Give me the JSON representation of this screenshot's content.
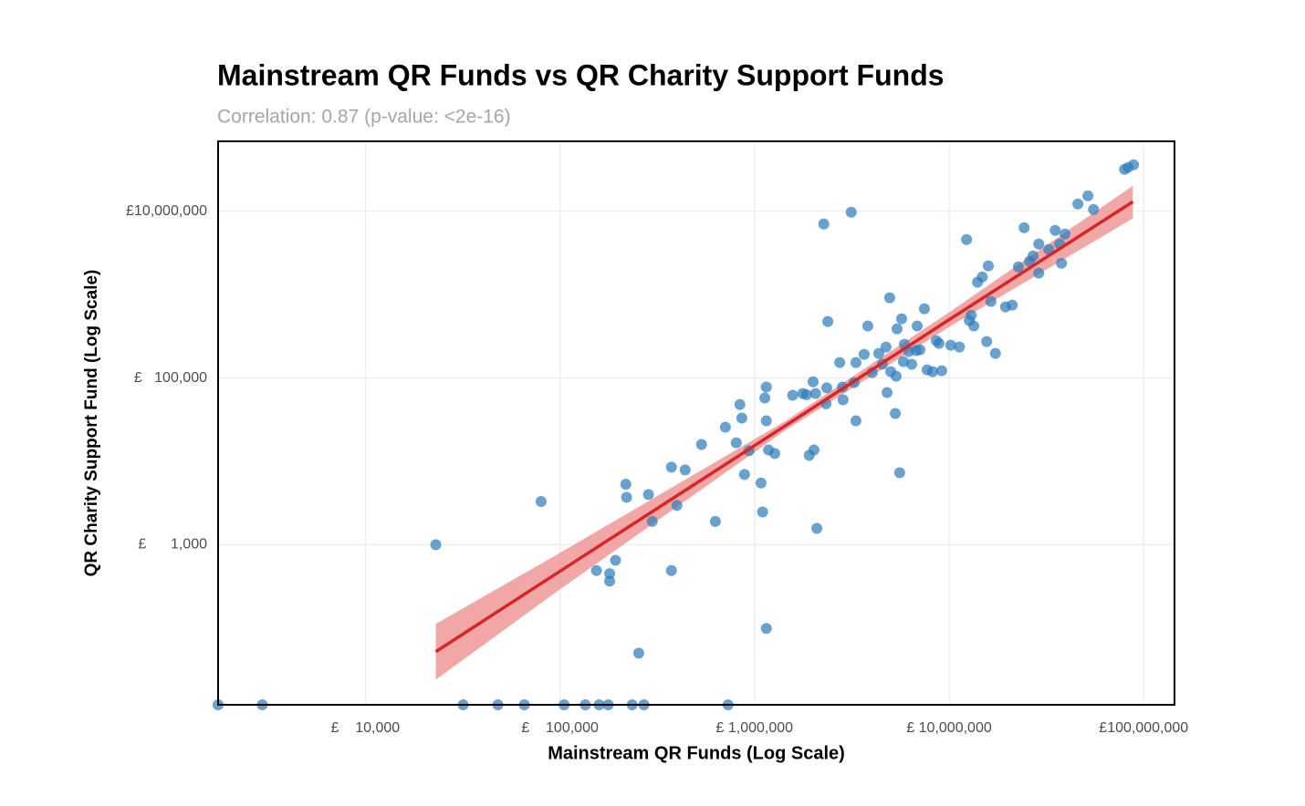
{
  "chart_data": {
    "type": "scatter",
    "title": "Mainstream QR Funds vs QR Charity Support Funds",
    "subtitle": "Correlation: 0.87 (p-value: <2e-16)",
    "x_label": "Mainstream QR Funds (Log Scale)",
    "y_label": "QR Charity Support Fund (Log Scale)",
    "xscale": "log",
    "yscale": "log",
    "grid": true,
    "color": "#2b7bba",
    "xlim": [
      1750,
      144000000
    ],
    "ylim": [
      12,
      69000000
    ],
    "xticks": [
      {
        "value": 10000,
        "label": "£    10,000"
      },
      {
        "value": 100000,
        "label": "£    100,000"
      },
      {
        "value": 1000000,
        "label": "£ 1,000,000"
      },
      {
        "value": 10000000,
        "label": "£ 10,000,000"
      },
      {
        "value": 100000000,
        "label": "£100,000,000"
      }
    ],
    "yticks": [
      {
        "value": 1000,
        "label": "£      1,000"
      },
      {
        "value": 100000,
        "label": "£   100,000"
      },
      {
        "value": 10000000,
        "label": "£10,000,000"
      }
    ],
    "x": [
      23000,
      80000,
      154000,
      180000,
      180000,
      193000,
      218000,
      220000,
      254000,
      285000,
      298000,
      374000,
      374000,
      399000,
      440000,
      534000,
      629000,
      708000,
      806000,
      841000,
      860000,
      888000,
      937000,
      1080000,
      1100000,
      1130000,
      1150000,
      1150000,
      1150000,
      1180000,
      1270000,
      1570000,
      1770000,
      1850000,
      1910000,
      2020000,
      2000000,
      2060000,
      2090000,
      2270000,
      2350000,
      2380000,
      2330000,
      2740000,
      2830000,
      2850000,
      3140000,
      3320000,
      3320000,
      3250000,
      3660000,
      3820000,
      4030000,
      4350000,
      4540000,
      4740000,
      4950000,
      4800000,
      5010000,
      5290000,
      5400000,
      5340000,
      5570000,
      5700000,
      5890000,
      5820000,
      6210000,
      6420000,
      6850000,
      6780000,
      7080000,
      7460000,
      7710000,
      8230000,
      8590000,
      8870000,
      9160000,
      10200000,
      11300000,
      12300000,
      12700000,
      13000000,
      13400000,
      14000000,
      14800000,
      15600000,
      15900000,
      16400000,
      17300000,
      19500000,
      21100000,
      22700000,
      24300000,
      25900000,
      27000000,
      28900000,
      28900000,
      32500000,
      35100000,
      37000000,
      37800000,
      39400000,
      45900000,
      51700000,
      55200000,
      79700000,
      83100000,
      88700000,
      1750,
      2950,
      31800,
      48000,
      65600,
      105000,
      135000,
      159000,
      177000,
      235000,
      270000,
      731000
    ],
    "values": [
      1000,
      3300,
      490,
      450,
      365,
      650,
      5300,
      3700,
      50,
      4000,
      1900,
      8500,
      490,
      2950,
      7900,
      15900,
      1900,
      25700,
      16700,
      48000,
      33000,
      6950,
      13400,
      5500,
      2470,
      57500,
      77800,
      30600,
      99,
      13700,
      12400,
      62000,
      65000,
      63000,
      11800,
      13700,
      90000,
      65000,
      1570,
      7030000,
      76000,
      476000,
      49000,
      153000,
      77800,
      54700,
      9750000,
      30600,
      153000,
      88000,
      192000,
      420000,
      116000,
      197000,
      146000,
      235000,
      916000,
      66800,
      119000,
      37500,
      389000,
      105000,
      7300,
      513000,
      253000,
      157000,
      208000,
      146000,
      420000,
      213000,
      218000,
      677000,
      125000,
      119000,
      280000,
      260000,
      122000,
      247000,
      235000,
      4580000,
      489000,
      568000,
      420000,
      1410000,
      1630000,
      273000,
      2210000,
      827000,
      197000,
      711000,
      748000,
      2150000,
      6350000,
      2510000,
      2910000,
      1810000,
      4040000,
      3480000,
      5890000,
      4040000,
      2380000,
      5330000,
      12200000,
      15300000,
      10500000,
      31800000,
      33500000,
      36100000,
      0,
      0,
      0,
      0,
      0,
      0,
      0,
      0,
      0,
      0,
      0,
      0
    ],
    "fit": {
      "color": "#d62728",
      "band_color": "#ee8a8a",
      "x": [
        23000,
        100000,
        1450000,
        10000000,
        88000000
      ],
      "values": [
        52,
        480,
        27000,
        500000,
        13000000
      ],
      "lower": [
        24,
        291,
        23800,
        409000,
        8180000
      ],
      "upper": [
        112,
        798,
        30600,
        612000,
        20200000
      ]
    }
  }
}
